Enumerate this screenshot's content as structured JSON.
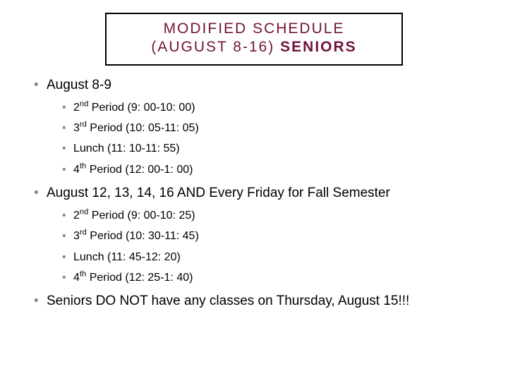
{
  "title": {
    "line1": "MODIFIED SCHEDULE",
    "line2_prefix": "(AUGUST 8-16) ",
    "line2_bold": "SENIORS"
  },
  "sections": [
    {
      "heading": "August 8-9",
      "items": [
        {
          "pre": "2",
          "sup": "nd",
          "rest": " Period (9: 00-10: 00)"
        },
        {
          "pre": "3",
          "sup": "rd",
          "rest": " Period (10: 05-11: 05)"
        },
        {
          "pre": "Lunch (11: 10-11: 55)",
          "sup": "",
          "rest": ""
        },
        {
          "pre": "4",
          "sup": "th",
          "rest": " Period (12: 00-1: 00)"
        }
      ]
    },
    {
      "heading": "August 12, 13, 14, 16 AND Every Friday for Fall Semester",
      "items": [
        {
          "pre": "2",
          "sup": "nd",
          "rest": " Period (9: 00-10: 25)"
        },
        {
          "pre": "3",
          "sup": "rd",
          "rest": " Period (10: 30-11: 45)"
        },
        {
          "pre": "Lunch (11: 45-12: 20)",
          "sup": "",
          "rest": ""
        },
        {
          "pre": "4",
          "sup": "th",
          "rest": " Period (12: 25-1: 40)"
        }
      ]
    }
  ],
  "footer": "Seniors DO NOT have any classes on Thursday, August 15!!!",
  "colors": {
    "title_text": "#72133b",
    "bullet": "#888888",
    "body_text": "#000000",
    "background": "#ffffff",
    "border": "#000000"
  },
  "typography": {
    "title_fontsize": 21,
    "title_letterspacing": 2,
    "top_fontsize": 19,
    "sub_fontsize": 16,
    "font_family": "Arial"
  }
}
